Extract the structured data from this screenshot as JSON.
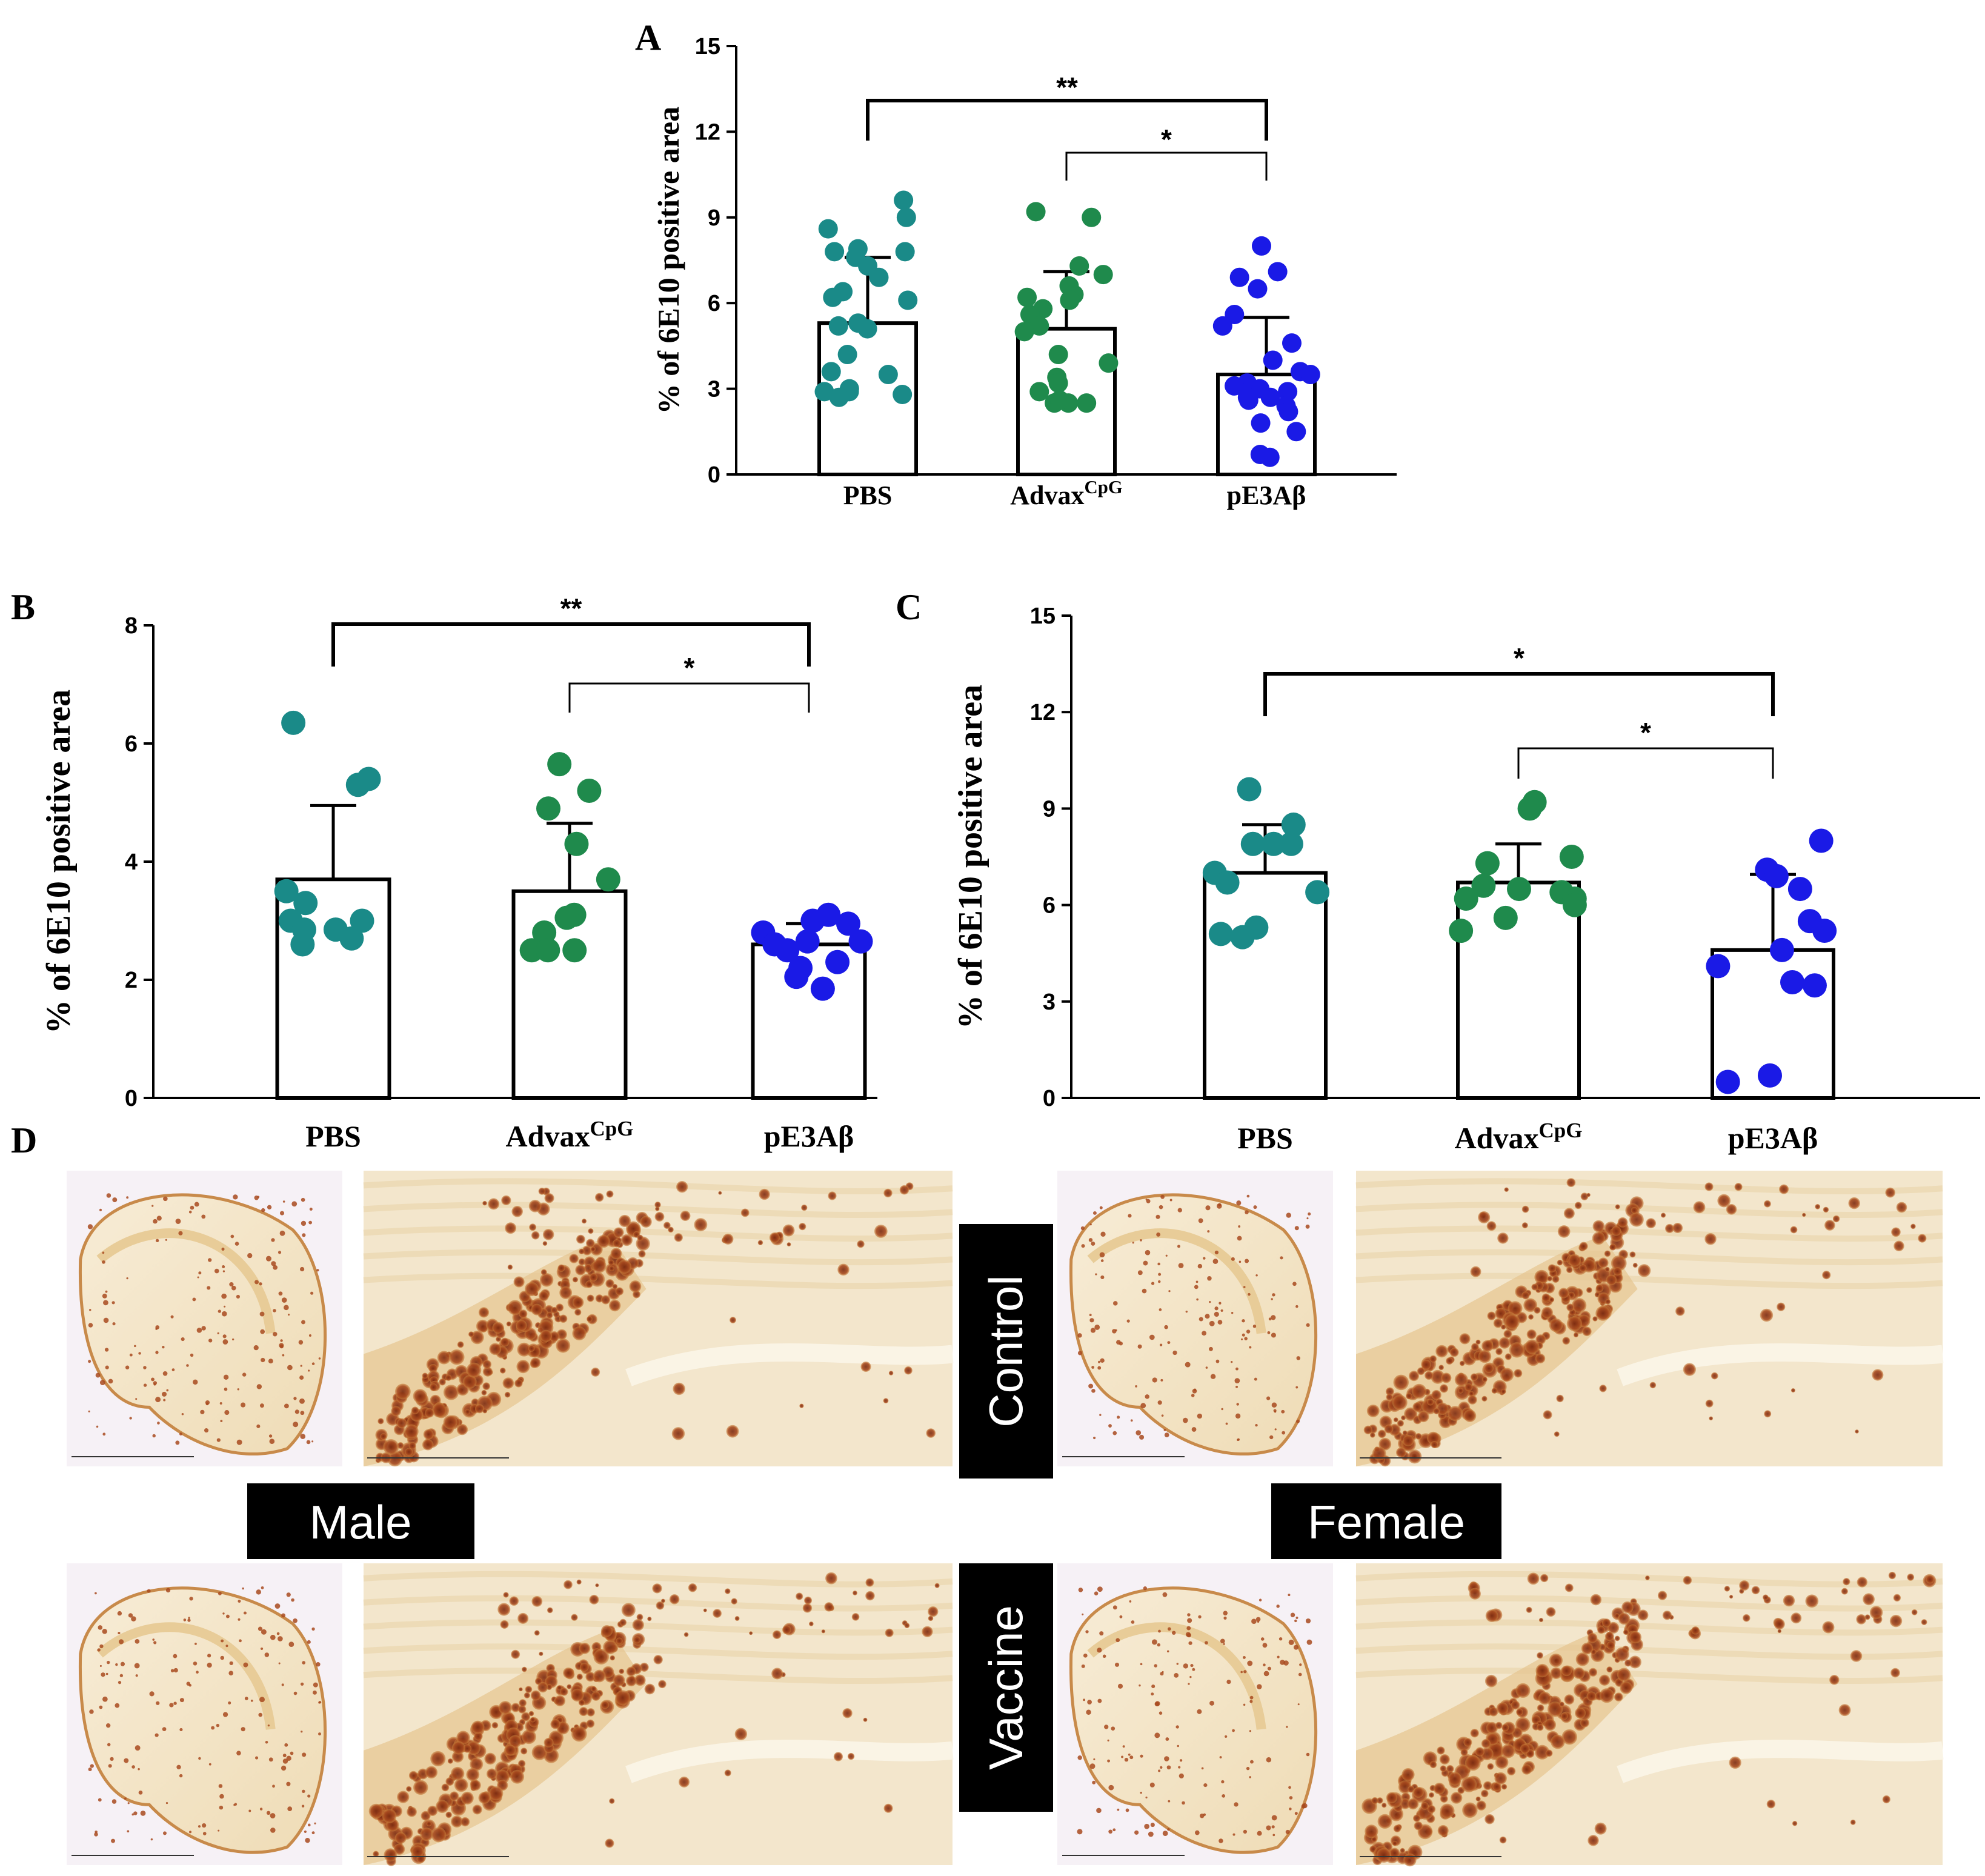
{
  "colors": {
    "pbs": "#1a8a88",
    "advax": "#1f8a4c",
    "pe3": "#1a1ae6",
    "tissue_bg": "#f3e6cc",
    "tissue_mid": "#e8cc98",
    "tissue_rim": "#c88a4a",
    "plaque": "#a84a1e",
    "plaque_dark": "#7a2a10"
  },
  "panel_labels": {
    "A": "A",
    "B": "B",
    "C": "C",
    "D": "D"
  },
  "chart_data": [
    {
      "id": "A",
      "type": "bar",
      "ylabel": "% of 6E10 positive area",
      "ylim": [
        0,
        15
      ],
      "yticks": [
        0,
        3,
        6,
        9,
        12,
        15
      ],
      "categories": [
        "PBS",
        "Advax",
        "pE3Aβ"
      ],
      "category_superscripts": [
        "",
        "CpG",
        ""
      ],
      "means": [
        5.3,
        5.1,
        3.5
      ],
      "sd_upper": [
        7.6,
        7.1,
        5.5
      ],
      "points": [
        [
          9.6,
          9.0,
          8.6,
          7.9,
          7.8,
          7.8,
          7.6,
          7.3,
          6.9,
          6.4,
          6.2,
          6.1,
          5.3,
          5.2,
          5.1,
          4.2,
          3.6,
          3.5,
          3.0,
          2.9,
          2.9,
          2.8,
          2.7
        ],
        [
          9.2,
          9.0,
          7.3,
          7.0,
          6.6,
          6.3,
          6.2,
          6.1,
          5.8,
          5.6,
          5.2,
          5.0,
          4.2,
          3.9,
          3.4,
          3.2,
          2.9,
          2.5,
          2.5,
          2.5,
          2.6
        ],
        [
          8.0,
          7.1,
          6.9,
          6.5,
          5.6,
          5.2,
          4.6,
          4.0,
          3.6,
          3.5,
          3.2,
          3.1,
          3.0,
          2.9,
          2.7,
          2.7,
          2.6,
          2.4,
          2.2,
          1.8,
          1.5,
          0.7,
          0.6
        ]
      ],
      "significance": [
        {
          "from": 0,
          "to": 2,
          "label": "**"
        },
        {
          "from": 1,
          "to": 2,
          "label": "*"
        }
      ]
    },
    {
      "id": "B",
      "type": "bar",
      "ylabel": "% of 6E10 positive area",
      "ylim": [
        0,
        8
      ],
      "yticks": [
        0,
        2,
        4,
        6,
        8
      ],
      "categories": [
        "PBS",
        "Advax",
        "pE3Aβ"
      ],
      "category_superscripts": [
        "",
        "CpG",
        ""
      ],
      "means": [
        3.7,
        3.5,
        2.6
      ],
      "sd_upper": [
        4.95,
        4.65,
        2.95
      ],
      "points": [
        [
          6.35,
          5.4,
          5.3,
          3.5,
          3.3,
          3.0,
          3.0,
          2.85,
          2.85,
          2.7,
          2.6
        ],
        [
          5.65,
          5.2,
          4.9,
          4.3,
          3.7,
          3.1,
          3.05,
          2.8,
          2.5,
          2.5,
          2.5
        ],
        [
          3.1,
          3.0,
          2.95,
          2.8,
          2.65,
          2.65,
          2.6,
          2.5,
          2.3,
          2.2,
          2.05,
          1.85
        ]
      ],
      "significance": [
        {
          "from": 0,
          "to": 2,
          "label": "**"
        },
        {
          "from": 1,
          "to": 2,
          "label": "*"
        }
      ]
    },
    {
      "id": "C",
      "type": "bar",
      "ylabel": "% of 6E10 positive area",
      "ylim": [
        0,
        15
      ],
      "yticks": [
        0,
        3,
        6,
        9,
        12,
        15
      ],
      "categories": [
        "PBS",
        "Advax",
        "pE3Aβ"
      ],
      "category_superscripts": [
        "",
        "CpG",
        ""
      ],
      "means": [
        7.0,
        6.7,
        4.6
      ],
      "sd_upper": [
        8.5,
        7.9,
        6.95
      ],
      "points": [
        [
          9.6,
          8.5,
          7.9,
          7.9,
          7.9,
          7.0,
          6.7,
          6.4,
          5.3,
          5.1,
          5.0
        ],
        [
          9.2,
          9.0,
          7.5,
          7.3,
          6.6,
          6.5,
          6.4,
          6.2,
          6.2,
          6.0,
          5.6,
          5.2
        ],
        [
          8.0,
          7.1,
          6.9,
          6.5,
          5.5,
          5.2,
          4.6,
          4.1,
          3.6,
          3.5,
          0.7,
          0.5
        ]
      ],
      "significance": [
        {
          "from": 0,
          "to": 2,
          "label": "*"
        },
        {
          "from": 1,
          "to": 2,
          "label": "*"
        }
      ]
    }
  ],
  "panel_d": {
    "row_labels": [
      "Control",
      "Vaccine"
    ],
    "sex_labels": [
      "Male",
      "Female"
    ]
  }
}
